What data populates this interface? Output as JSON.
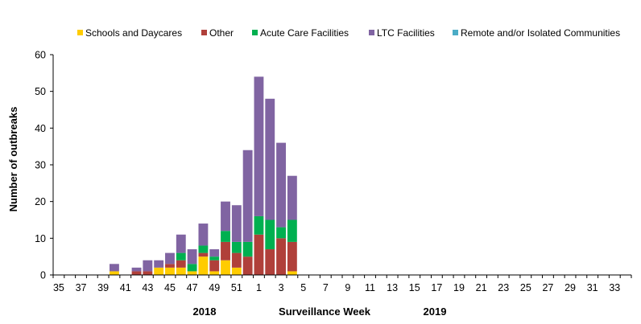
{
  "chart_data": {
    "type": "bar",
    "stacked": true,
    "title": "",
    "xlabel": "Surveillance Week",
    "ylabel": "Number of outbreaks",
    "year_labels": [
      "2018",
      "2019"
    ],
    "ylim": [
      0,
      60
    ],
    "yticks": [
      0,
      10,
      20,
      30,
      40,
      50,
      60
    ],
    "grid": false,
    "legend_position": "top",
    "categories": [
      "35",
      "36",
      "37",
      "38",
      "39",
      "40",
      "41",
      "42",
      "43",
      "44",
      "45",
      "46",
      "47",
      "48",
      "49",
      "50",
      "51",
      "52",
      "1",
      "2",
      "3",
      "4",
      "5",
      "6",
      "7",
      "8",
      "9",
      "10",
      "11",
      "12",
      "13",
      "14",
      "15",
      "16",
      "17",
      "18",
      "19",
      "20",
      "21",
      "22",
      "23",
      "24",
      "25",
      "26",
      "27",
      "28",
      "29",
      "30",
      "31",
      "32",
      "33",
      "34"
    ],
    "tick_labels": [
      "35",
      "37",
      "39",
      "41",
      "43",
      "45",
      "47",
      "49",
      "51",
      "1",
      "3",
      "5",
      "7",
      "9",
      "11",
      "13",
      "15",
      "17",
      "19",
      "21",
      "23",
      "25",
      "27",
      "29",
      "31",
      "33"
    ],
    "series": [
      {
        "name": "Schools and Daycares",
        "color": "#FFCC00",
        "values": [
          0,
          0,
          0,
          0,
          0,
          1,
          0,
          0,
          0,
          2,
          2,
          2,
          1,
          5,
          1,
          4,
          2,
          0,
          0,
          0,
          0,
          1,
          0,
          0,
          0,
          0,
          0,
          0,
          0,
          0,
          0,
          0,
          0,
          0,
          0,
          0,
          0,
          0,
          0,
          0,
          0,
          0,
          0,
          0,
          0,
          0,
          0,
          0,
          0,
          0,
          0,
          0
        ]
      },
      {
        "name": "Other",
        "color": "#B0403A",
        "values": [
          0,
          0,
          0,
          0,
          0,
          0,
          0,
          1,
          1,
          0,
          1,
          2,
          0,
          1,
          3,
          5,
          4,
          5,
          11,
          7,
          10,
          8,
          0,
          0,
          0,
          0,
          0,
          0,
          0,
          0,
          0,
          0,
          0,
          0,
          0,
          0,
          0,
          0,
          0,
          0,
          0,
          0,
          0,
          0,
          0,
          0,
          0,
          0,
          0,
          0,
          0,
          0
        ]
      },
      {
        "name": "Acute Care Facilities",
        "color": "#00B050",
        "values": [
          0,
          0,
          0,
          0,
          0,
          0,
          0,
          0,
          0,
          0,
          0,
          2,
          2,
          2,
          1,
          3,
          3,
          4,
          5,
          8,
          3,
          6,
          0,
          0,
          0,
          0,
          0,
          0,
          0,
          0,
          0,
          0,
          0,
          0,
          0,
          0,
          0,
          0,
          0,
          0,
          0,
          0,
          0,
          0,
          0,
          0,
          0,
          0,
          0,
          0,
          0,
          0
        ]
      },
      {
        "name": "LTC Facilities",
        "color": "#8064A2",
        "values": [
          0,
          0,
          0,
          0,
          0,
          2,
          0,
          1,
          3,
          2,
          3,
          5,
          4,
          6,
          2,
          8,
          10,
          25,
          38,
          33,
          23,
          12,
          0,
          0,
          0,
          0,
          0,
          0,
          0,
          0,
          0,
          0,
          0,
          0,
          0,
          0,
          0,
          0,
          0,
          0,
          0,
          0,
          0,
          0,
          0,
          0,
          0,
          0,
          0,
          0,
          0,
          0
        ]
      },
      {
        "name": "Remote and/or Isolated Communities",
        "color": "#4BACC6",
        "values": [
          0,
          0,
          0,
          0,
          0,
          0,
          0,
          0,
          0,
          0,
          0,
          0,
          0,
          0,
          0,
          0,
          0,
          0,
          0,
          0,
          0,
          0,
          0,
          0,
          0,
          0,
          0,
          0,
          0,
          0,
          0,
          0,
          0,
          0,
          0,
          0,
          0,
          0,
          0,
          0,
          0,
          0,
          0,
          0,
          0,
          0,
          0,
          0,
          0,
          0,
          0,
          0
        ]
      }
    ]
  }
}
